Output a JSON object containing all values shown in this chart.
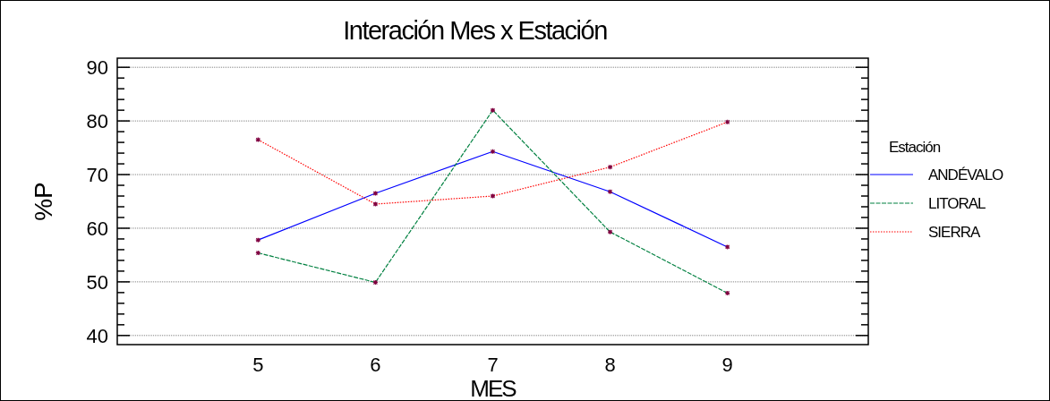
{
  "chart_data": {
    "type": "line",
    "title": "Interación Mes x Estación",
    "xlabel": "MES",
    "ylabel": "%P",
    "legend_title": "Estación",
    "legend": "right",
    "grid": "y",
    "marker": "cross",
    "x": [
      5,
      6,
      7,
      8,
      9
    ],
    "xlim": [
      3.8,
      10.2
    ],
    "xticks": [
      5,
      6,
      7,
      8,
      9
    ],
    "ylim": [
      38.3,
      91.7
    ],
    "yticks": [
      40,
      {
        "value": 42,
        "label": null
      },
      {
        "value": 44,
        "label": null
      },
      {
        "value": 46,
        "label": null
      },
      {
        "value": 48,
        "label": null
      },
      50,
      {
        "value": 52,
        "label": null
      },
      {
        "value": 54,
        "label": null
      },
      {
        "value": 56,
        "label": null
      },
      {
        "value": 58,
        "label": null
      },
      60,
      {
        "value": 62,
        "label": null
      },
      {
        "value": 64,
        "label": null
      },
      {
        "value": 66,
        "label": null
      },
      {
        "value": 68,
        "label": null
      },
      70,
      {
        "value": 72,
        "label": null
      },
      {
        "value": 74,
        "label": null
      },
      {
        "value": 76,
        "label": null
      },
      {
        "value": 78,
        "label": null
      },
      80,
      {
        "value": 82,
        "label": null
      },
      {
        "value": 84,
        "label": null
      },
      {
        "value": 86,
        "label": null
      },
      {
        "value": 88,
        "label": null
      },
      90
    ],
    "series": [
      {
        "name": "ANDÉVALO",
        "color": "#0000ff",
        "line_style": "solid",
        "values": [
          57.8,
          66.5,
          74.3,
          66.8,
          56.5
        ]
      },
      {
        "name": "LITORAL",
        "color": "#008040",
        "line_style": "dashed",
        "values": [
          55.4,
          49.9,
          82,
          59.3,
          47.9
        ]
      },
      {
        "name": "SIERRA",
        "color": "#ff0000",
        "line_style": "dotted",
        "values": [
          76.5,
          64.5,
          66,
          71.4,
          79.8
        ]
      }
    ]
  }
}
